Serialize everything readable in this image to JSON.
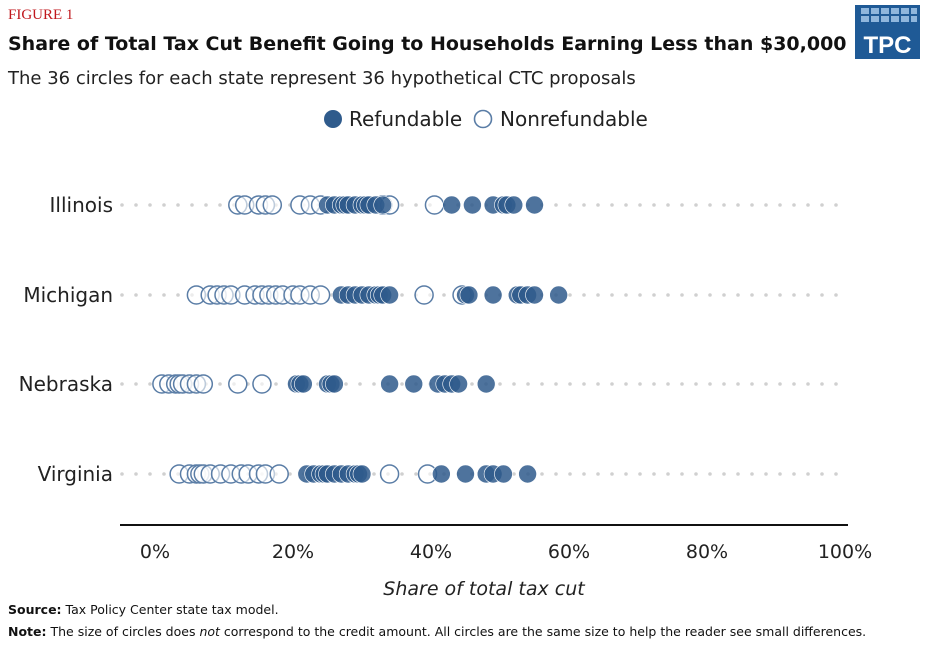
{
  "figure_label": "FIGURE 1",
  "logo_text": "TPC",
  "source": {
    "label": "Source:",
    "text": " Tax Policy Center state tax model."
  },
  "note": {
    "label": "Note:",
    "text_before": " The size of circles does ",
    "text_em": "not",
    "text_after": " correspond to the credit amount. All circles are the same size to help the reader see small differences."
  },
  "colors": {
    "refundable": "#2f5b8c",
    "nonrefundable_stroke": "#5a7da6",
    "figure_label": "#c0171d",
    "logo_bg": "#1f5a96",
    "dot_track": "#d0d0d0"
  },
  "chart_data": {
    "type": "scatter",
    "title": "Share of Total Tax Cut Benefit Going to Households Earning Less than $30,000",
    "subtitle": "The 36 circles for each state represent 36 hypothetical CTC proposals",
    "xlabel": "Share of total tax cut",
    "ylabel": "",
    "xlim": [
      0,
      100
    ],
    "x_ticks": [
      "0%",
      "20%",
      "40%",
      "60%",
      "80%",
      "100%"
    ],
    "x_tick_values": [
      0,
      20,
      40,
      60,
      80,
      100
    ],
    "categories": [
      "Illinois",
      "Michigan",
      "Nebraska",
      "Virginia"
    ],
    "legend": {
      "position": "top-center",
      "entries": [
        "Refundable",
        "Nonrefundable"
      ]
    },
    "series": [
      {
        "name": "Refundable",
        "points": {
          "Illinois": [
            25,
            26,
            27,
            27.5,
            28,
            29,
            30,
            30.5,
            31,
            32,
            33,
            43,
            46,
            49,
            50.5,
            51,
            52,
            55
          ],
          "Michigan": [
            27,
            28,
            29,
            30,
            31,
            32,
            32.5,
            33,
            34,
            45,
            45.5,
            49,
            52.5,
            53,
            54,
            55,
            58.5
          ],
          "Nebraska": [
            20.5,
            21,
            21.5,
            25,
            25.5,
            26,
            34,
            37.5,
            41,
            42,
            43,
            44,
            48
          ],
          "Virginia": [
            22,
            23,
            24,
            24.5,
            25,
            26,
            27,
            28,
            29,
            29.5,
            30,
            41.5,
            45,
            48,
            49,
            50.5,
            54
          ]
        }
      },
      {
        "name": "Nonrefundable",
        "points": {
          "Illinois": [
            12,
            13,
            15,
            16,
            17,
            21,
            22.5,
            24,
            33,
            34,
            40.5
          ],
          "Michigan": [
            6,
            8,
            9,
            10,
            11,
            13,
            14.5,
            15.5,
            16.5,
            17.5,
            18.5,
            20,
            21,
            22.5,
            24,
            39,
            44.5
          ],
          "Nebraska": [
            1,
            2,
            3,
            3.5,
            4,
            5,
            6,
            7,
            12,
            15.5
          ],
          "Virginia": [
            3.5,
            5,
            6,
            6.5,
            7,
            8,
            9.5,
            11,
            12.5,
            13.5,
            15,
            16,
            18,
            34,
            39.5
          ]
        }
      }
    ]
  }
}
